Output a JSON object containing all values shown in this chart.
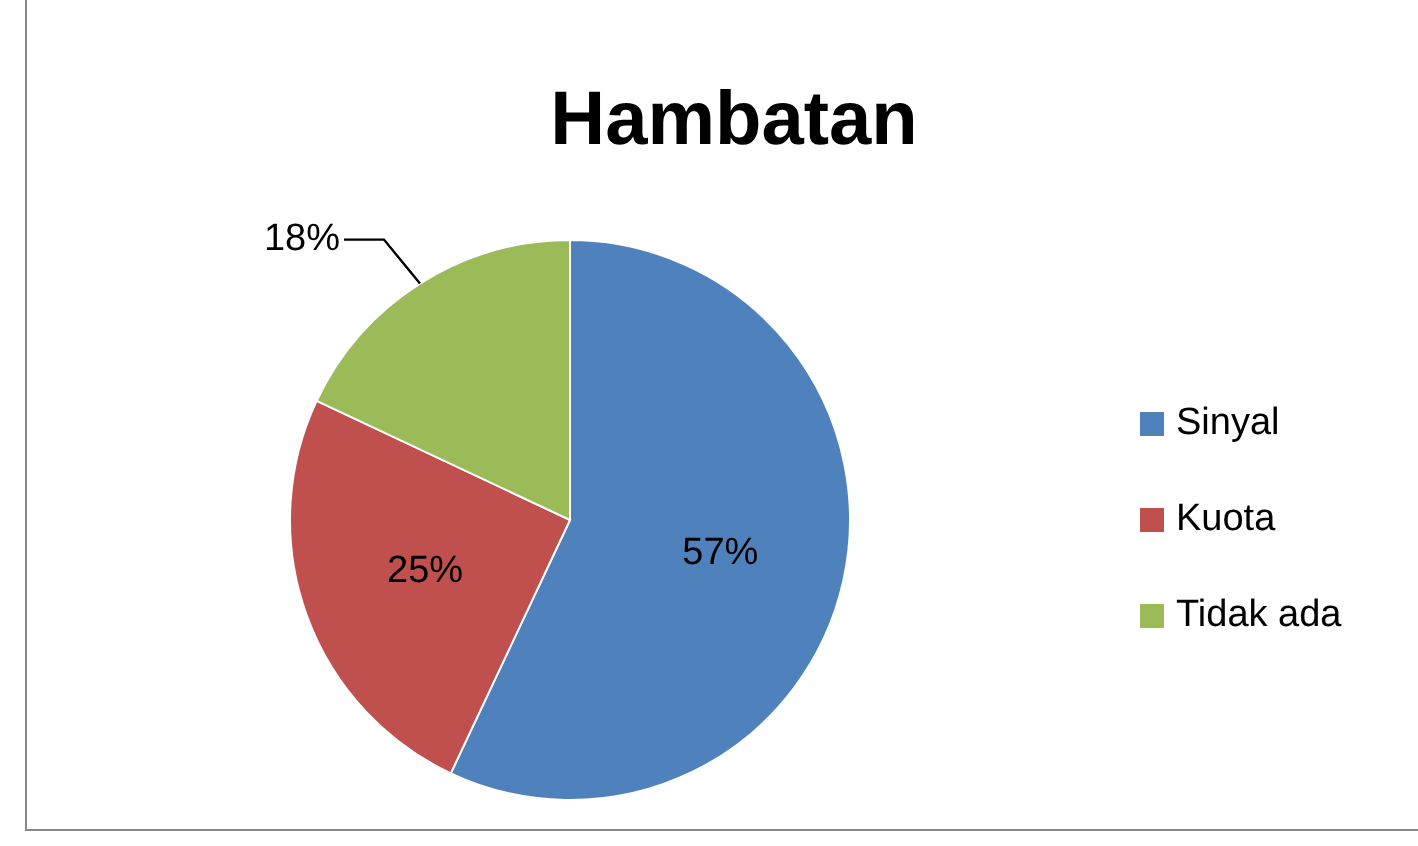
{
  "chart_data": {
    "type": "pie",
    "title": "Hambatan",
    "categories": [
      "Sinyal",
      "Kuota",
      "Tidak ada"
    ],
    "values": [
      57,
      25,
      18
    ],
    "colors": [
      "#4f81bd",
      "#c0504d",
      "#9bbb59"
    ],
    "value_labels": [
      "57%",
      "25%",
      "18%"
    ],
    "legend": "right"
  }
}
